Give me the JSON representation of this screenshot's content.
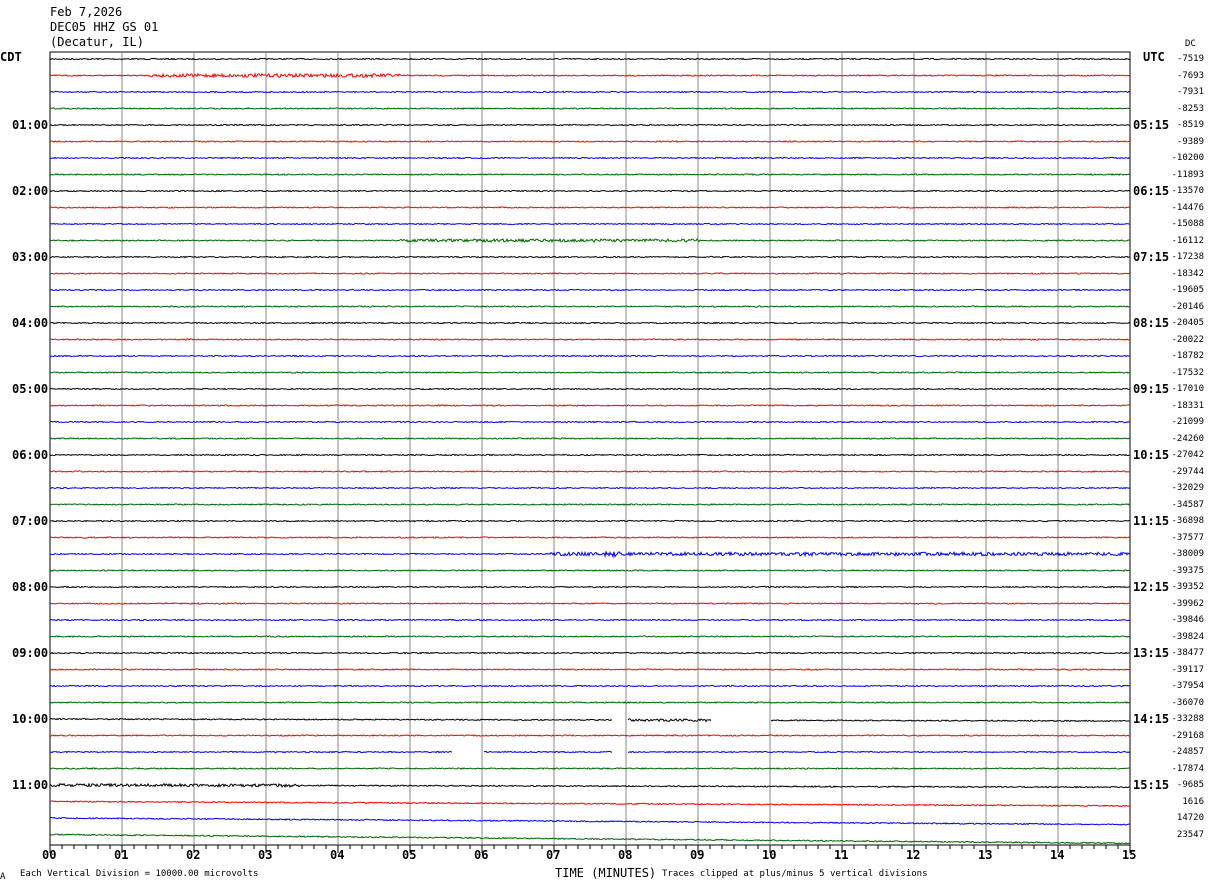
{
  "header": {
    "date": "Feb 7,2026",
    "station": "DEC05 HHZ GS 01",
    "location": "(Decatur, IL)"
  },
  "left_timezone": "CDT",
  "right_timezone": "UTC",
  "right_corner": "DC",
  "left_hour_labels": [
    "01:00",
    "02:00",
    "03:00",
    "04:00",
    "05:00",
    "06:00",
    "07:00",
    "08:00",
    "09:00",
    "10:00",
    "11:00"
  ],
  "right_hour_labels": [
    "05:15",
    "06:15",
    "07:15",
    "08:15",
    "09:15",
    "10:15",
    "11:15",
    "12:15",
    "13:15",
    "14:15",
    "15:15"
  ],
  "trace_offsets": [
    "-7519",
    "-7693",
    "-7931",
    "-8253",
    "-8519",
    "-9389",
    "-10200",
    "-11893",
    "-13570",
    "-14476",
    "-15088",
    "-16112",
    "-17238",
    "-18342",
    "-19605",
    "-20146",
    "-20405",
    "-20022",
    "-18782",
    "-17532",
    "-17010",
    "-18331",
    "-21099",
    "-24260",
    "-27042",
    "-29744",
    "-32029",
    "-34587",
    "-36898",
    "-37577",
    "-38009",
    "-39375",
    "-39352",
    "-39962",
    "-39846",
    "-39824",
    "-38477",
    "-39117",
    "-37954",
    "-36070",
    "-33288",
    "-29168",
    "-24857",
    "-17874",
    "-9685",
    "1616",
    "14720",
    "23547"
  ],
  "x_ticks": [
    "00",
    "01",
    "02",
    "03",
    "04",
    "05",
    "06",
    "07",
    "08",
    "09",
    "10",
    "11",
    "12",
    "13",
    "14",
    "15"
  ],
  "x_axis_label": "TIME (MINUTES)",
  "footer_left": "Each Vertical Division = 10000.00 microvolts",
  "footer_right": "Traces clipped at plus/minus 5 vertical divisions",
  "corner_mark": "A",
  "trace_colors": [
    "#000000",
    "#ff0000",
    "#0000ff",
    "#006400"
  ]
}
